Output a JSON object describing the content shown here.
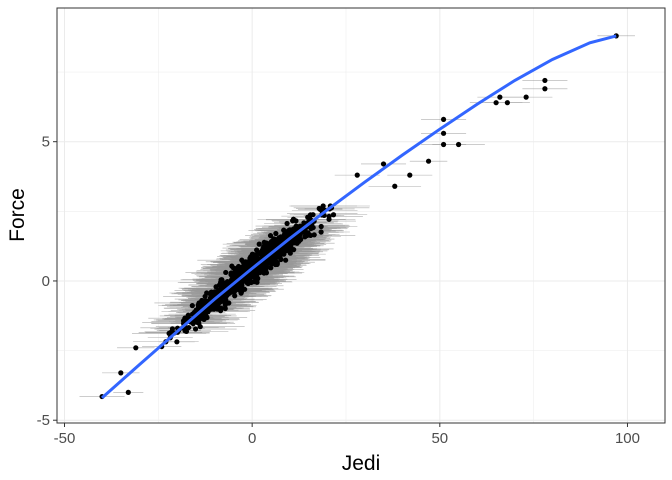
{
  "chart_data": {
    "type": "scatter",
    "title": "",
    "xlabel": "Jedi",
    "ylabel": "Force",
    "xlim": [
      -52,
      110
    ],
    "ylim": [
      -5.1,
      9.8
    ],
    "xticks": [
      -50,
      0,
      50,
      100
    ],
    "xtick_labels": [
      "-50",
      "0",
      "50",
      "100"
    ],
    "yticks": [
      -5,
      0,
      5
    ],
    "ytick_labels": [
      "-5",
      "0",
      "5"
    ],
    "grid": true,
    "legend": "none",
    "colors": {
      "points": "#000000",
      "errorbars": "#999999",
      "fit": "#3366ff",
      "grid": "#ebebeb",
      "panel_border": "#333333"
    },
    "fit_line": {
      "x": [
        -40,
        -30,
        -20,
        -10,
        0,
        10,
        20,
        30,
        40,
        50,
        60,
        70,
        80,
        90,
        97
      ],
      "y": [
        -4.2,
        -3.0,
        -1.82,
        -0.65,
        0.45,
        1.52,
        2.55,
        3.55,
        4.52,
        5.45,
        6.35,
        7.2,
        7.95,
        8.55,
        8.8
      ]
    },
    "outliers": [
      {
        "x": -40,
        "y": -4.15,
        "xerr": 6
      },
      {
        "x": -35,
        "y": -3.3,
        "xerr": 5
      },
      {
        "x": -33,
        "y": -4.0,
        "xerr": 4
      },
      {
        "x": -31,
        "y": -2.4,
        "xerr": 5
      },
      {
        "x": 28,
        "y": 3.8,
        "xerr": 6
      },
      {
        "x": 35,
        "y": 4.2,
        "xerr": 6
      },
      {
        "x": 38,
        "y": 3.4,
        "xerr": 7
      },
      {
        "x": 42,
        "y": 3.8,
        "xerr": 6
      },
      {
        "x": 47,
        "y": 4.3,
        "xerr": 5
      },
      {
        "x": 51,
        "y": 5.8,
        "xerr": 6
      },
      {
        "x": 51,
        "y": 5.3,
        "xerr": 6
      },
      {
        "x": 51,
        "y": 4.9,
        "xerr": 6
      },
      {
        "x": 55,
        "y": 4.9,
        "xerr": 7
      },
      {
        "x": 65,
        "y": 6.4,
        "xerr": 7
      },
      {
        "x": 66,
        "y": 6.6,
        "xerr": 6
      },
      {
        "x": 68,
        "y": 6.4,
        "xerr": 6
      },
      {
        "x": 73,
        "y": 6.6,
        "xerr": 7
      },
      {
        "x": 78,
        "y": 7.2,
        "xerr": 6
      },
      {
        "x": 78,
        "y": 6.9,
        "xerr": 6
      },
      {
        "x": 97,
        "y": 8.8,
        "xerr": 5
      }
    ],
    "bulk": {
      "n": 900,
      "x_range": [
        -30,
        30
      ],
      "fit": "fit_line",
      "y_spread": 0.35,
      "xerr_range": [
        4,
        12
      ]
    }
  }
}
